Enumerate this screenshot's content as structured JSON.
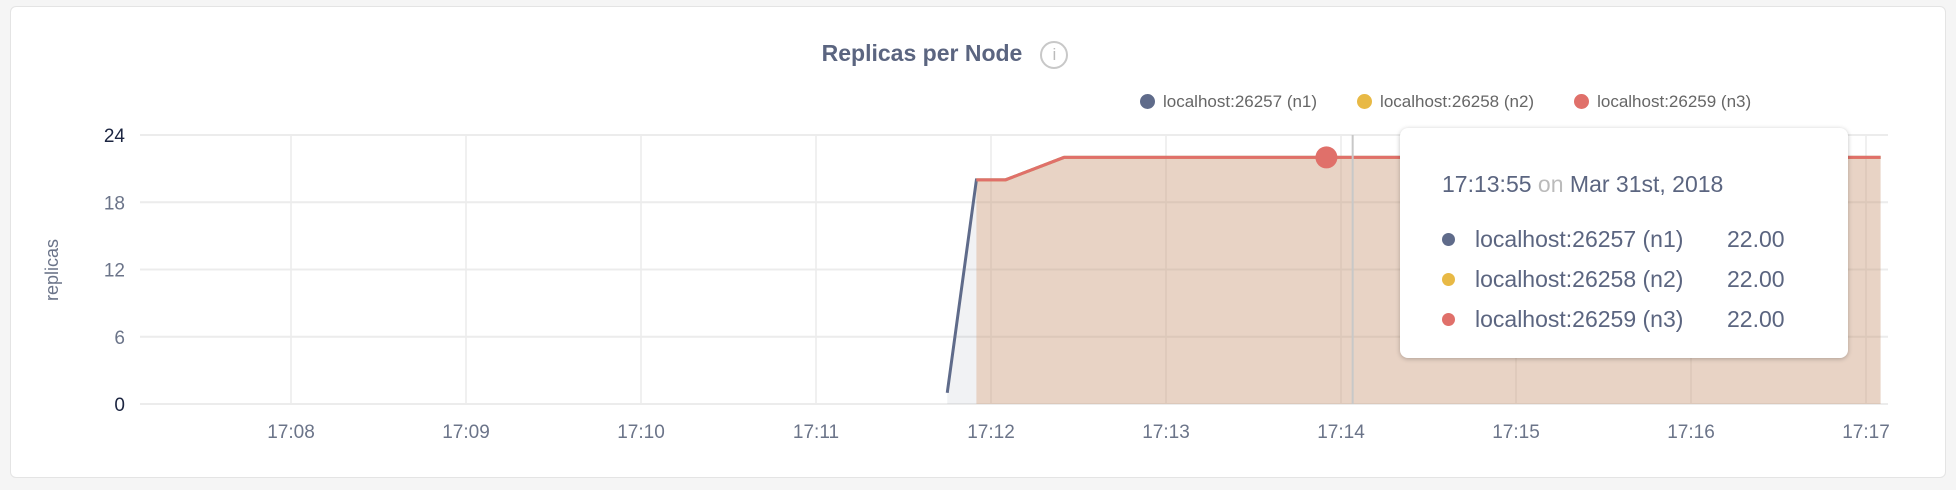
{
  "chart_data": {
    "type": "area",
    "title": "Replicas per Node",
    "ylabel": "replicas",
    "xlabel": "",
    "ylim": [
      0,
      24
    ],
    "yticks": [
      "0",
      "6",
      "12",
      "18",
      "24"
    ],
    "xlim": [
      "17:07:25",
      "17:17:15"
    ],
    "xticks": [
      "17:08",
      "17:09",
      "17:10",
      "17:11",
      "17:12",
      "17:13",
      "17:14",
      "17:15",
      "17:16",
      "17:17"
    ],
    "grid": true,
    "legend_placement": "top-right",
    "series": [
      {
        "name": "localhost:26257 (n1)",
        "color": "#5f6b8a",
        "points": [
          [
            "17:11:45",
            1
          ],
          [
            "17:11:55",
            20
          ],
          [
            "17:12:05",
            20
          ],
          [
            "17:12:25",
            22
          ],
          [
            "17:17:05",
            22
          ]
        ]
      },
      {
        "name": "localhost:26258 (n2)",
        "color": "#e8b945",
        "points": [
          [
            "17:11:55",
            20
          ],
          [
            "17:12:05",
            20
          ],
          [
            "17:12:25",
            22
          ],
          [
            "17:17:05",
            22
          ]
        ]
      },
      {
        "name": "localhost:26259 (n3)",
        "color": "#e0706a",
        "points": [
          [
            "17:11:55",
            20
          ],
          [
            "17:12:05",
            20
          ],
          [
            "17:12:25",
            22
          ],
          [
            "17:17:05",
            22
          ]
        ]
      }
    ],
    "hover": {
      "time": "17:13:55",
      "cursor": "17:14:04"
    }
  },
  "tooltip": {
    "time": "17:13:55",
    "on": "on",
    "date": "Mar 31st, 2018",
    "rows": [
      {
        "name": "localhost:26257 (n1)",
        "value": "22.00",
        "color": "#5f6b8a"
      },
      {
        "name": "localhost:26258 (n2)",
        "value": "22.00",
        "color": "#e8b945"
      },
      {
        "name": "localhost:26259 (n3)",
        "value": "22.00",
        "color": "#e0706a"
      }
    ]
  },
  "info_icon": "i"
}
